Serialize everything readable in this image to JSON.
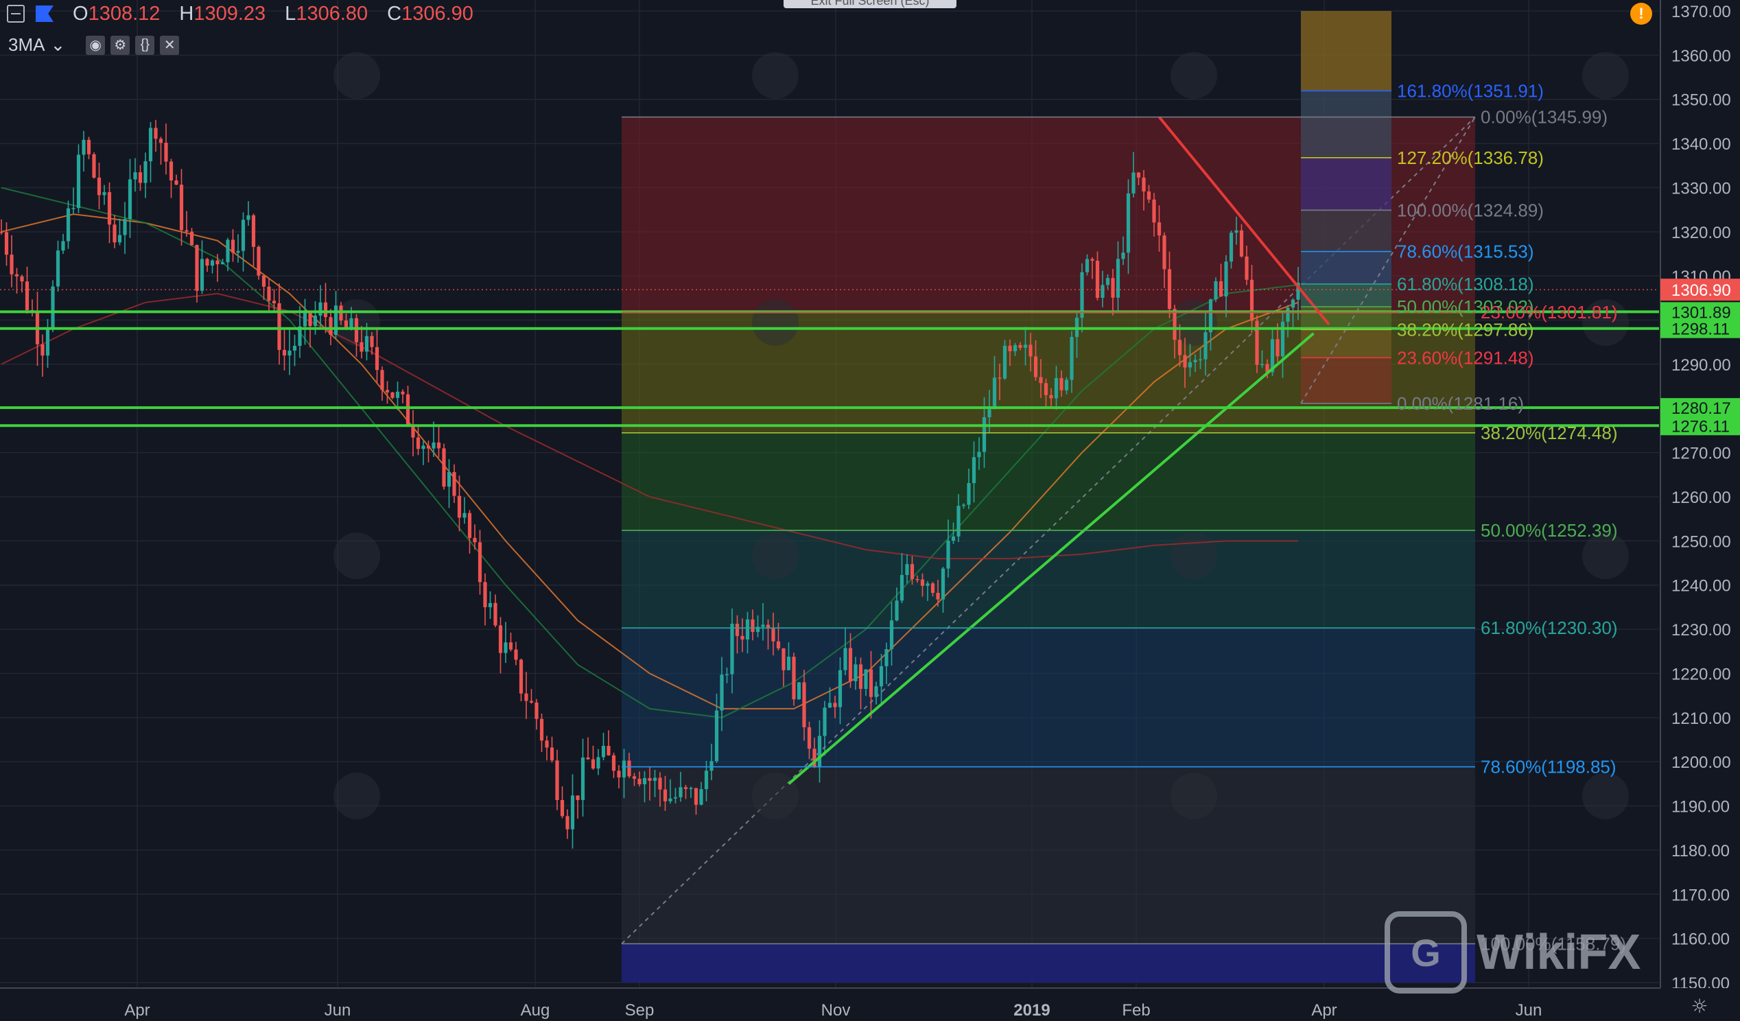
{
  "header": {
    "o_label": "O",
    "o_value": "1308.12",
    "h_label": "H",
    "h_value": "1309.23",
    "l_label": "L",
    "l_value": "1306.80",
    "c_label": "C",
    "c_value": "1306.90",
    "indicator": "3MA",
    "exit_fullscreen": "Exit Full Screen (Esc)",
    "alert_glyph": "!"
  },
  "watermark": {
    "text": "WikiFX",
    "logo_glyph": "G"
  },
  "chart_data": {
    "type": "candlestick",
    "y_range": [
      1150,
      1370
    ],
    "y_ticks": [
      "1150.00",
      "1160.00",
      "1170.00",
      "1180.00",
      "1190.00",
      "1200.00",
      "1210.00",
      "1220.00",
      "1230.00",
      "1240.00",
      "1250.00",
      "1260.00",
      "1270.00",
      "1280.00",
      "1290.00",
      "1300.00",
      "1310.00",
      "1320.00",
      "1330.00",
      "1340.00",
      "1350.00",
      "1360.00",
      "1370.00"
    ],
    "x_labels": [
      "Apr",
      "Jun",
      "Aug",
      "Sep",
      "Nov",
      "2019",
      "Feb",
      "Apr",
      "Jun"
    ],
    "x_label_bold": "2019",
    "price_anchors": [
      {
        "t": 0,
        "p": 1320
      },
      {
        "t": 8,
        "p": 1295
      },
      {
        "t": 16,
        "p": 1340
      },
      {
        "t": 22,
        "p": 1318
      },
      {
        "t": 30,
        "p": 1345
      },
      {
        "t": 38,
        "p": 1310
      },
      {
        "t": 48,
        "p": 1322
      },
      {
        "t": 55,
        "p": 1292
      },
      {
        "t": 62,
        "p": 1302
      },
      {
        "t": 70,
        "p": 1295
      },
      {
        "t": 78,
        "p": 1280
      },
      {
        "t": 88,
        "p": 1262
      },
      {
        "t": 96,
        "p": 1230
      },
      {
        "t": 104,
        "p": 1210
      },
      {
        "t": 110,
        "p": 1188
      },
      {
        "t": 114,
        "p": 1200
      },
      {
        "t": 122,
        "p": 1200
      },
      {
        "t": 130,
        "p": 1192
      },
      {
        "t": 136,
        "p": 1192
      },
      {
        "t": 142,
        "p": 1228
      },
      {
        "t": 148,
        "p": 1235
      },
      {
        "t": 154,
        "p": 1218
      },
      {
        "t": 158,
        "p": 1202
      },
      {
        "t": 164,
        "p": 1222
      },
      {
        "t": 170,
        "p": 1215
      },
      {
        "t": 176,
        "p": 1245
      },
      {
        "t": 182,
        "p": 1240
      },
      {
        "t": 188,
        "p": 1262
      },
      {
        "t": 194,
        "p": 1290
      },
      {
        "t": 200,
        "p": 1292
      },
      {
        "t": 206,
        "p": 1282
      },
      {
        "t": 210,
        "p": 1312
      },
      {
        "t": 216,
        "p": 1305
      },
      {
        "t": 220,
        "p": 1332
      },
      {
        "t": 224,
        "p": 1325
      },
      {
        "t": 228,
        "p": 1295
      },
      {
        "t": 232,
        "p": 1290
      },
      {
        "t": 236,
        "p": 1305
      },
      {
        "t": 240,
        "p": 1322
      },
      {
        "t": 244,
        "p": 1292
      },
      {
        "t": 248,
        "p": 1292
      },
      {
        "t": 252,
        "p": 1307
      }
    ],
    "moving_averages": [
      {
        "name": "",
        "color": "#e0752c",
        "values": [
          1320,
          1324,
          1322,
          1318,
          1306,
          1290,
          1270,
          1250,
          1232,
          1220,
          1212,
          1212,
          1220,
          1236,
          1252,
          1270,
          1286,
          1298,
          1304
        ]
      },
      {
        "name": "",
        "color": "#1b7a3a",
        "values": [
          1330,
          1326,
          1322,
          1314,
          1300,
          1280,
          1260,
          1240,
          1222,
          1212,
          1210,
          1218,
          1230,
          1248,
          1266,
          1284,
          1298,
          1306,
          1308
        ]
      },
      {
        "name": "",
        "color": "#9b2a2a",
        "values": [
          1290,
          1298,
          1304,
          1306,
          1302,
          1294,
          1285,
          1276,
          1268,
          1260,
          1256,
          1252,
          1248,
          1246,
          1246,
          1247,
          1249,
          1250,
          1250
        ]
      }
    ],
    "horizontal_levels": [
      {
        "value": 1301.89,
        "label": "1301.89",
        "color": "#3ed13e"
      },
      {
        "value": 1298.11,
        "label": "1298.11",
        "color": "#3ed13e"
      },
      {
        "value": 1280.17,
        "label": "1280.17",
        "color": "#3ed13e"
      },
      {
        "value": 1276.11,
        "label": "1276.11",
        "color": "#3ed13e"
      }
    ],
    "last_price": {
      "value": 1306.9,
      "label": "1306.90",
      "color": "#ef5350"
    },
    "fib_large": [
      {
        "level": "0.00%",
        "value": 1345.99,
        "label": "0.00%(1345.99)",
        "color": "#787b86"
      },
      {
        "level": "23.60%",
        "value": 1301.81,
        "label": "23.60%(1301.81)",
        "color": "#f23645"
      },
      {
        "level": "38.20%",
        "value": 1274.48,
        "label": "38.20%(1274.48)",
        "color": "#9fc43b"
      },
      {
        "level": "50.00%",
        "value": 1252.39,
        "label": "50.00%(1252.39)",
        "color": "#4caf50"
      },
      {
        "level": "61.80%",
        "value": 1230.3,
        "label": "61.80%(1230.30)",
        "color": "#26a69a"
      },
      {
        "level": "78.60%",
        "value": 1198.85,
        "label": "78.60%(1198.85)",
        "color": "#2196f3"
      },
      {
        "level": "100.00%",
        "value": 1158.79,
        "label": "100.00%(1158.79)",
        "color": "#787b86"
      }
    ],
    "fib_small": [
      {
        "level": "161.80%",
        "value": 1351.91,
        "label": "161.80%(1351.91)",
        "color": "#2962ff"
      },
      {
        "level": "127.20%",
        "value": 1336.78,
        "label": "127.20%(1336.78)",
        "color": "#c3c321"
      },
      {
        "level": "100.00%",
        "value": 1324.89,
        "label": "100.00%(1324.89)",
        "color": "#787b86"
      },
      {
        "level": "78.60%",
        "value": 1315.53,
        "label": "78.60%(1315.53)",
        "color": "#2196f3"
      },
      {
        "level": "61.80%",
        "value": 1308.18,
        "label": "61.80%(1308.18)",
        "color": "#26a69a"
      },
      {
        "level": "50.00%",
        "value": 1303.02,
        "label": "50.00%(1303.02)",
        "color": "#4caf50"
      },
      {
        "level": "38.20%",
        "value": 1297.86,
        "label": "38.20%(1297.86)",
        "color": "#9fc43b"
      },
      {
        "level": "23.60%",
        "value": 1291.48,
        "label": "23.60%(1291.48)",
        "color": "#f23645"
      },
      {
        "level": "0.00%",
        "value": 1281.16,
        "label": "0.00%(1281.16)",
        "color": "#787b86"
      }
    ],
    "trendlines": [
      {
        "name": "",
        "color": "#3ed13e",
        "from": {
          "t": 153,
          "p": 1195
        },
        "to": {
          "t": 255,
          "p": 1297
        }
      },
      {
        "name": "",
        "color": "#e53935",
        "from": {
          "t": 225,
          "p": 1346
        },
        "to": {
          "t": 258,
          "p": 1299
        }
      }
    ],
    "colors": {
      "up": "#26a69a",
      "down": "#ef5350",
      "bg": "#131722",
      "grid": "#232733"
    }
  }
}
